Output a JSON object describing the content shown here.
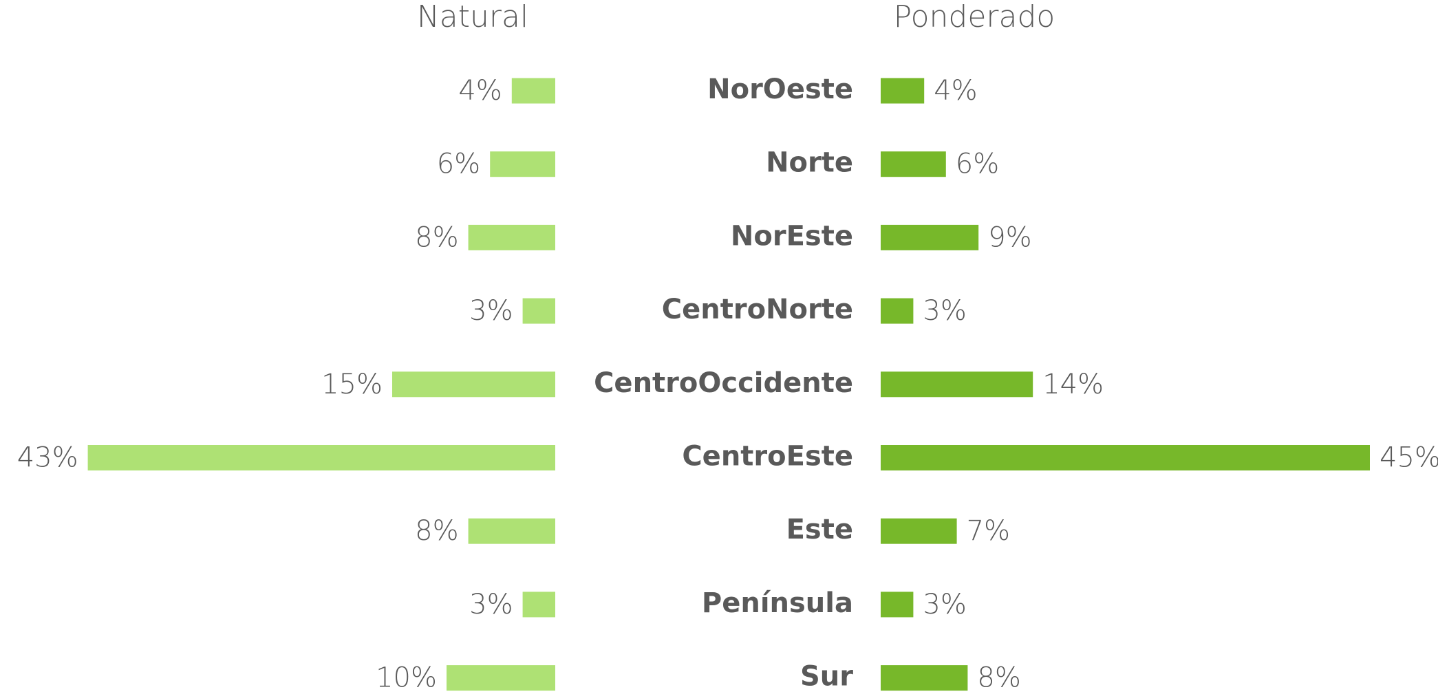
{
  "chart_data": {
    "type": "bar",
    "categories": [
      "NorOeste",
      "Norte",
      "NorEste",
      "CentroNorte",
      "CentroOccidente",
      "CentroEste",
      "Este",
      "Península",
      "Sur"
    ],
    "series": [
      {
        "name": "Natural",
        "color": "#aee174",
        "values": [
          4,
          6,
          8,
          3,
          15,
          43,
          8,
          3,
          10
        ],
        "value_labels": [
          "4%",
          "6%",
          "8%",
          "3%",
          "15%",
          "43%",
          "8%",
          "3%",
          "10%"
        ]
      },
      {
        "name": "Ponderado",
        "color": "#77b82a",
        "values": [
          4,
          6,
          9,
          3,
          14,
          45,
          7,
          3,
          8
        ],
        "value_labels": [
          "4%",
          "6%",
          "9%",
          "3%",
          "14%",
          "45%",
          "7%",
          "3%",
          "8%"
        ]
      }
    ]
  }
}
